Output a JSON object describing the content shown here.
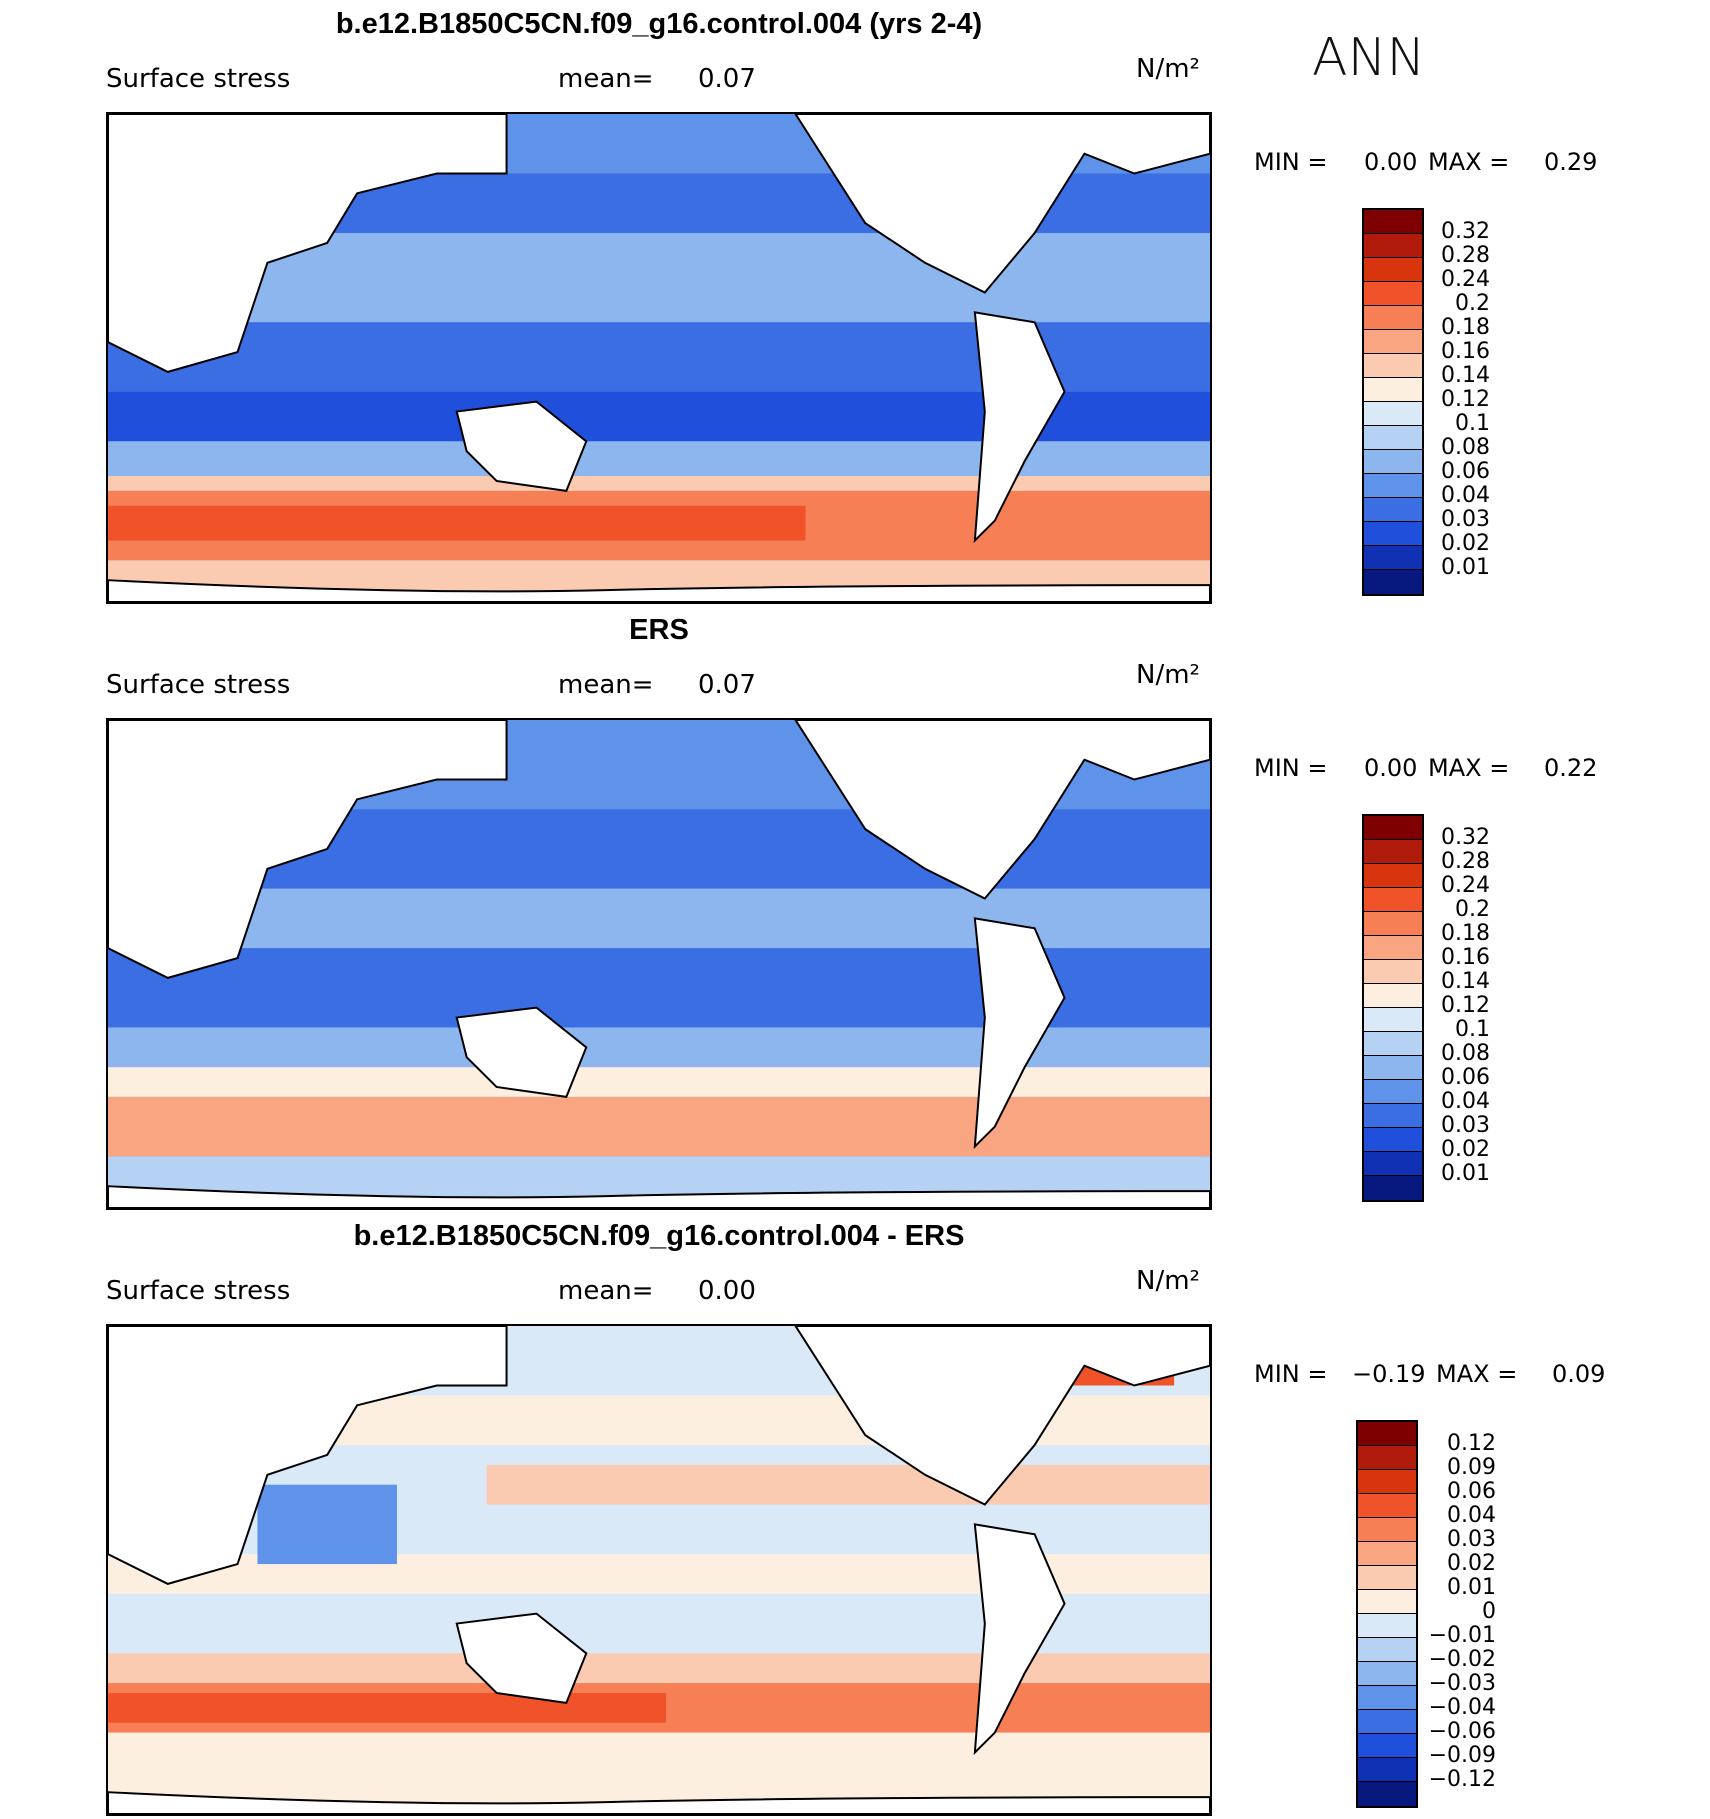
{
  "season": "ANN",
  "panels": [
    {
      "title": "b.e12.B1850C5CN.f09_g16.control.004 (yrs 2-4)",
      "variable": "Surface stress",
      "mean_label": "mean=",
      "mean_value": "0.07",
      "units": "N/m²",
      "min_label": "MIN =",
      "min_value": "0.00",
      "max_label": "MAX =",
      "max_value": "0.29",
      "colorbar": {
        "colors": [
          "#7f0000",
          "#b11b0b",
          "#d8340e",
          "#f0532a",
          "#f67f55",
          "#f9a582",
          "#fbcbb1",
          "#fdefdf",
          "#d9e9f8",
          "#b5d1f3",
          "#8db6ef",
          "#5f93ea",
          "#3b6ee3",
          "#1f4fdb",
          "#1031b4",
          "#07197e"
        ],
        "ticks": [
          "0.32",
          "0.28",
          "0.24",
          "0.2",
          "0.18",
          "0.16",
          "0.14",
          "0.12",
          "0.1",
          "0.08",
          "0.06",
          "0.04",
          "0.03",
          "0.02",
          "0.01"
        ]
      }
    },
    {
      "title": "ERS",
      "variable": "Surface stress",
      "mean_label": "mean=",
      "mean_value": "0.07",
      "units": "N/m²",
      "min_label": "MIN =",
      "min_value": "0.00",
      "max_label": "MAX =",
      "max_value": "0.22",
      "colorbar": {
        "colors": [
          "#7f0000",
          "#b11b0b",
          "#d8340e",
          "#f0532a",
          "#f67f55",
          "#f9a582",
          "#fbcbb1",
          "#fdefdf",
          "#d9e9f8",
          "#b5d1f3",
          "#8db6ef",
          "#5f93ea",
          "#3b6ee3",
          "#1f4fdb",
          "#1031b4",
          "#07197e"
        ],
        "ticks": [
          "0.32",
          "0.28",
          "0.24",
          "0.2",
          "0.18",
          "0.16",
          "0.14",
          "0.12",
          "0.1",
          "0.08",
          "0.06",
          "0.04",
          "0.03",
          "0.02",
          "0.01"
        ]
      }
    },
    {
      "title": "b.e12.B1850C5CN.f09_g16.control.004 - ERS",
      "variable": "Surface stress",
      "mean_label": "mean=",
      "mean_value": "0.00",
      "units": "N/m²",
      "min_label": "MIN =",
      "min_value": "−0.19",
      "max_label": "MAX =",
      "max_value": "0.09",
      "colorbar": {
        "colors": [
          "#7f0000",
          "#b11b0b",
          "#d8340e",
          "#f0532a",
          "#f67f55",
          "#f9a582",
          "#fbcbb1",
          "#fdefdf",
          "#d9e9f8",
          "#b5d1f3",
          "#8db6ef",
          "#5f93ea",
          "#3b6ee3",
          "#1f4fdb",
          "#1031b4",
          "#07197e"
        ],
        "ticks": [
          "0.12",
          "0.09",
          "0.06",
          "0.04",
          "0.03",
          "0.02",
          "0.01",
          "0",
          "−0.01",
          "−0.02",
          "−0.03",
          "−0.04",
          "−0.06",
          "−0.09",
          "−0.12"
        ]
      }
    }
  ]
}
